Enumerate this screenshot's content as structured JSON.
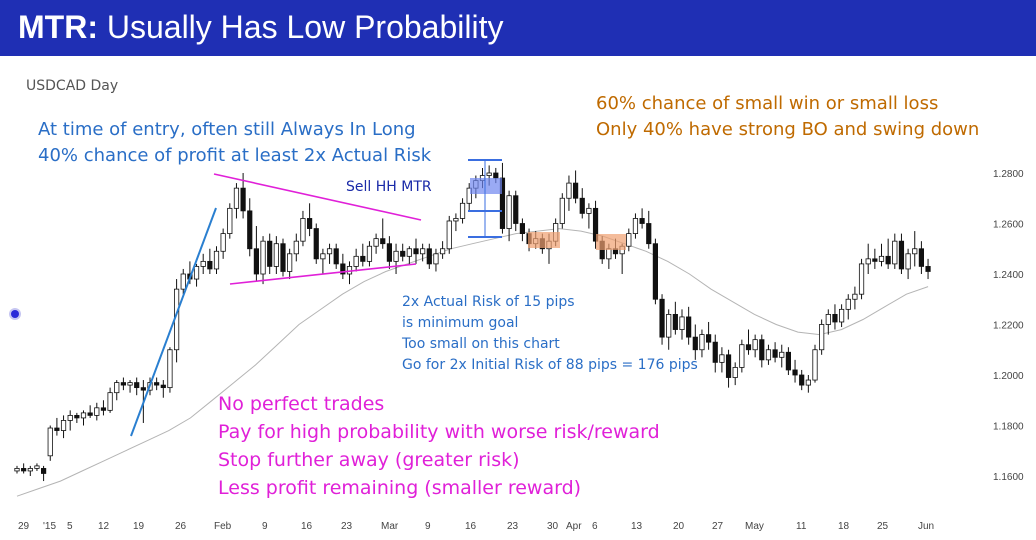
{
  "header": {
    "title_bold": "MTR:",
    "title_rest": "Usually Has Low Probability"
  },
  "chart_data": {
    "type": "candlestick",
    "symbol_label": "USDCAD Day",
    "ylim": [
      1.15,
      1.29
    ],
    "y_ticks": [
      "1.2800",
      "1.2600",
      "1.2400",
      "1.2200",
      "1.2000",
      "1.1800",
      "1.1600"
    ],
    "x_ticks": [
      "29",
      "'15",
      "5",
      "12",
      "19",
      "26",
      "Feb",
      "9",
      "16",
      "23",
      "Mar",
      "9",
      "16",
      "23",
      "30",
      "Apr",
      "6",
      "13",
      "20",
      "27",
      "May",
      "11",
      "18",
      "25",
      "Jun"
    ],
    "ema_label": "20-bar moving average",
    "ohlc": [
      [
        1.162,
        1.164,
        1.161,
        1.163
      ],
      [
        1.163,
        1.165,
        1.161,
        1.162
      ],
      [
        1.162,
        1.164,
        1.16,
        1.163
      ],
      [
        1.163,
        1.165,
        1.162,
        1.164
      ],
      [
        1.163,
        1.164,
        1.158,
        1.161
      ],
      [
        1.168,
        1.18,
        1.166,
        1.179
      ],
      [
        1.179,
        1.183,
        1.176,
        1.178
      ],
      [
        1.178,
        1.184,
        1.175,
        1.182
      ],
      [
        1.182,
        1.186,
        1.178,
        1.184
      ],
      [
        1.184,
        1.185,
        1.181,
        1.183
      ],
      [
        1.183,
        1.186,
        1.18,
        1.185
      ],
      [
        1.185,
        1.188,
        1.183,
        1.184
      ],
      [
        1.184,
        1.189,
        1.182,
        1.187
      ],
      [
        1.187,
        1.19,
        1.184,
        1.186
      ],
      [
        1.186,
        1.195,
        1.185,
        1.193
      ],
      [
        1.193,
        1.198,
        1.19,
        1.197
      ],
      [
        1.197,
        1.199,
        1.194,
        1.196
      ],
      [
        1.196,
        1.198,
        1.193,
        1.197
      ],
      [
        1.197,
        1.199,
        1.192,
        1.195
      ],
      [
        1.195,
        1.198,
        1.181,
        1.194
      ],
      [
        1.194,
        1.199,
        1.192,
        1.197
      ],
      [
        1.197,
        1.199,
        1.194,
        1.196
      ],
      [
        1.196,
        1.198,
        1.191,
        1.195
      ],
      [
        1.195,
        1.211,
        1.193,
        1.21
      ],
      [
        1.21,
        1.238,
        1.205,
        1.234
      ],
      [
        1.234,
        1.242,
        1.232,
        1.24
      ],
      [
        1.24,
        1.245,
        1.236,
        1.238
      ],
      [
        1.238,
        1.244,
        1.235,
        1.243
      ],
      [
        1.243,
        1.248,
        1.24,
        1.245
      ],
      [
        1.245,
        1.25,
        1.24,
        1.242
      ],
      [
        1.242,
        1.251,
        1.24,
        1.249
      ],
      [
        1.249,
        1.258,
        1.246,
        1.256
      ],
      [
        1.256,
        1.268,
        1.254,
        1.266
      ],
      [
        1.266,
        1.276,
        1.262,
        1.274
      ],
      [
        1.274,
        1.28,
        1.262,
        1.265
      ],
      [
        1.265,
        1.27,
        1.247,
        1.25
      ],
      [
        1.25,
        1.259,
        1.237,
        1.24
      ],
      [
        1.24,
        1.255,
        1.236,
        1.253
      ],
      [
        1.253,
        1.256,
        1.24,
        1.243
      ],
      [
        1.243,
        1.255,
        1.24,
        1.252
      ],
      [
        1.252,
        1.254,
        1.239,
        1.241
      ],
      [
        1.241,
        1.25,
        1.238,
        1.248
      ],
      [
        1.248,
        1.256,
        1.245,
        1.253
      ],
      [
        1.253,
        1.265,
        1.251,
        1.262
      ],
      [
        1.262,
        1.268,
        1.255,
        1.258
      ],
      [
        1.258,
        1.26,
        1.244,
        1.246
      ],
      [
        1.246,
        1.25,
        1.24,
        1.248
      ],
      [
        1.248,
        1.252,
        1.244,
        1.25
      ],
      [
        1.25,
        1.252,
        1.242,
        1.244
      ],
      [
        1.244,
        1.248,
        1.238,
        1.24
      ],
      [
        1.24,
        1.245,
        1.236,
        1.243
      ],
      [
        1.243,
        1.25,
        1.241,
        1.247
      ],
      [
        1.247,
        1.252,
        1.243,
        1.245
      ],
      [
        1.245,
        1.253,
        1.243,
        1.251
      ],
      [
        1.251,
        1.256,
        1.248,
        1.254
      ],
      [
        1.254,
        1.262,
        1.25,
        1.252
      ],
      [
        1.252,
        1.255,
        1.242,
        1.245
      ],
      [
        1.245,
        1.252,
        1.24,
        1.249
      ],
      [
        1.249,
        1.252,
        1.245,
        1.247
      ],
      [
        1.247,
        1.251,
        1.244,
        1.25
      ],
      [
        1.25,
        1.254,
        1.244,
        1.248
      ],
      [
        1.248,
        1.252,
        1.245,
        1.25
      ],
      [
        1.25,
        1.252,
        1.242,
        1.244
      ],
      [
        1.244,
        1.25,
        1.241,
        1.248
      ],
      [
        1.248,
        1.253,
        1.246,
        1.25
      ],
      [
        1.25,
        1.263,
        1.248,
        1.261
      ],
      [
        1.261,
        1.264,
        1.257,
        1.262
      ],
      [
        1.262,
        1.27,
        1.26,
        1.268
      ],
      [
        1.268,
        1.276,
        1.265,
        1.274
      ],
      [
        1.274,
        1.279,
        1.27,
        1.277
      ],
      [
        1.277,
        1.282,
        1.274,
        1.279
      ],
      [
        1.279,
        1.283,
        1.275,
        1.28
      ],
      [
        1.28,
        1.282,
        1.276,
        1.278
      ],
      [
        1.278,
        1.284,
        1.256,
        1.258
      ],
      [
        1.258,
        1.273,
        1.253,
        1.271
      ],
      [
        1.271,
        1.273,
        1.257,
        1.26
      ],
      [
        1.26,
        1.262,
        1.253,
        1.256
      ],
      [
        1.256,
        1.258,
        1.249,
        1.252
      ],
      [
        1.252,
        1.257,
        1.25,
        1.254
      ],
      [
        1.254,
        1.256,
        1.248,
        1.25
      ],
      [
        1.25,
        1.256,
        1.244,
        1.253
      ],
      [
        1.253,
        1.262,
        1.251,
        1.26
      ],
      [
        1.26,
        1.272,
        1.258,
        1.27
      ],
      [
        1.27,
        1.279,
        1.265,
        1.276
      ],
      [
        1.276,
        1.281,
        1.268,
        1.27
      ],
      [
        1.27,
        1.274,
        1.262,
        1.264
      ],
      [
        1.264,
        1.268,
        1.258,
        1.266
      ],
      [
        1.266,
        1.269,
        1.25,
        1.253
      ],
      [
        1.253,
        1.255,
        1.244,
        1.246
      ],
      [
        1.246,
        1.252,
        1.242,
        1.25
      ],
      [
        1.25,
        1.254,
        1.246,
        1.248
      ],
      [
        1.248,
        1.252,
        1.24,
        1.251
      ],
      [
        1.251,
        1.258,
        1.249,
        1.256
      ],
      [
        1.256,
        1.264,
        1.254,
        1.262
      ],
      [
        1.262,
        1.266,
        1.258,
        1.26
      ],
      [
        1.26,
        1.265,
        1.25,
        1.252
      ],
      [
        1.252,
        1.254,
        1.228,
        1.23
      ],
      [
        1.23,
        1.232,
        1.212,
        1.215
      ],
      [
        1.215,
        1.226,
        1.21,
        1.224
      ],
      [
        1.224,
        1.229,
        1.216,
        1.218
      ],
      [
        1.218,
        1.226,
        1.214,
        1.223
      ],
      [
        1.223,
        1.227,
        1.212,
        1.215
      ],
      [
        1.215,
        1.22,
        1.206,
        1.21
      ],
      [
        1.21,
        1.218,
        1.207,
        1.216
      ],
      [
        1.216,
        1.221,
        1.21,
        1.213
      ],
      [
        1.213,
        1.216,
        1.201,
        1.205
      ],
      [
        1.205,
        1.211,
        1.201,
        1.208
      ],
      [
        1.208,
        1.21,
        1.195,
        1.199
      ],
      [
        1.199,
        1.205,
        1.196,
        1.203
      ],
      [
        1.203,
        1.214,
        1.201,
        1.212
      ],
      [
        1.212,
        1.218,
        1.208,
        1.21
      ],
      [
        1.21,
        1.216,
        1.207,
        1.214
      ],
      [
        1.214,
        1.216,
        1.203,
        1.206
      ],
      [
        1.206,
        1.212,
        1.204,
        1.21
      ],
      [
        1.21,
        1.213,
        1.205,
        1.207
      ],
      [
        1.207,
        1.212,
        1.203,
        1.209
      ],
      [
        1.209,
        1.211,
        1.2,
        1.202
      ],
      [
        1.202,
        1.206,
        1.197,
        1.2
      ],
      [
        1.2,
        1.202,
        1.194,
        1.196
      ],
      [
        1.196,
        1.2,
        1.193,
        1.198
      ],
      [
        1.198,
        1.212,
        1.197,
        1.21
      ],
      [
        1.21,
        1.222,
        1.208,
        1.22
      ],
      [
        1.22,
        1.226,
        1.216,
        1.224
      ],
      [
        1.224,
        1.228,
        1.218,
        1.221
      ],
      [
        1.221,
        1.228,
        1.219,
        1.226
      ],
      [
        1.226,
        1.232,
        1.222,
        1.23
      ],
      [
        1.23,
        1.235,
        1.226,
        1.232
      ],
      [
        1.232,
        1.246,
        1.23,
        1.244
      ],
      [
        1.244,
        1.252,
        1.24,
        1.246
      ],
      [
        1.246,
        1.25,
        1.242,
        1.245
      ],
      [
        1.245,
        1.252,
        1.243,
        1.247
      ],
      [
        1.247,
        1.254,
        1.242,
        1.244
      ],
      [
        1.244,
        1.256,
        1.242,
        1.253
      ],
      [
        1.253,
        1.256,
        1.24,
        1.242
      ],
      [
        1.242,
        1.25,
        1.238,
        1.248
      ],
      [
        1.248,
        1.257,
        1.243,
        1.25
      ],
      [
        1.25,
        1.253,
        1.24,
        1.243
      ],
      [
        1.243,
        1.246,
        1.238,
        1.241
      ]
    ],
    "ema": [
      1.152,
      1.155,
      1.158,
      1.162,
      1.166,
      1.17,
      1.174,
      1.178,
      1.183,
      1.19,
      1.197,
      1.204,
      1.212,
      1.22,
      1.226,
      1.232,
      1.237,
      1.241,
      1.244,
      1.247,
      1.25,
      1.252,
      1.254,
      1.256,
      1.257,
      1.258,
      1.257,
      1.255,
      1.252,
      1.249,
      1.245,
      1.24,
      1.234,
      1.229,
      1.224,
      1.22,
      1.217,
      1.216,
      1.218,
      1.222,
      1.227,
      1.232,
      1.235
    ],
    "trendlines": [
      "blue trend line",
      "magenta wedge upper",
      "magenta wedge lower"
    ],
    "mtr_label": "Sell HH MTR",
    "highlight_boxes": [
      "Sell HH MTR signal bar",
      "higher low entry zone",
      "higher low entry zone"
    ]
  },
  "notes": {
    "symbol": "USDCAD Day",
    "blue_1": "At time of entry, often still Always In Long",
    "blue_2": "40% chance of profit at least 2x Actual Risk",
    "orange_1": "60% chance of small win or small loss",
    "orange_2": "Only 40% have strong BO and swing down",
    "mtr": "Sell HH MTR",
    "small_1": "2x Actual Risk of 15 pips",
    "small_2": "is minimum goal",
    "small_3": "Too small on this chart",
    "small_4": "Go for 2x Initial Risk of 88 pips = 176 pips",
    "pink_1": "No perfect trades",
    "pink_2": "Pay for high probability with worse risk/reward",
    "pink_3": "Stop further away (greater risk)",
    "pink_4": "Less profit remaining (smaller reward)"
  },
  "colors": {
    "banner": "#1f2fb4",
    "blue": "#2a6ec6",
    "orange": "#bf6a00",
    "pink": "#e020d8",
    "box_blue": "#6f86f0",
    "box_orange": "#f0a070"
  }
}
